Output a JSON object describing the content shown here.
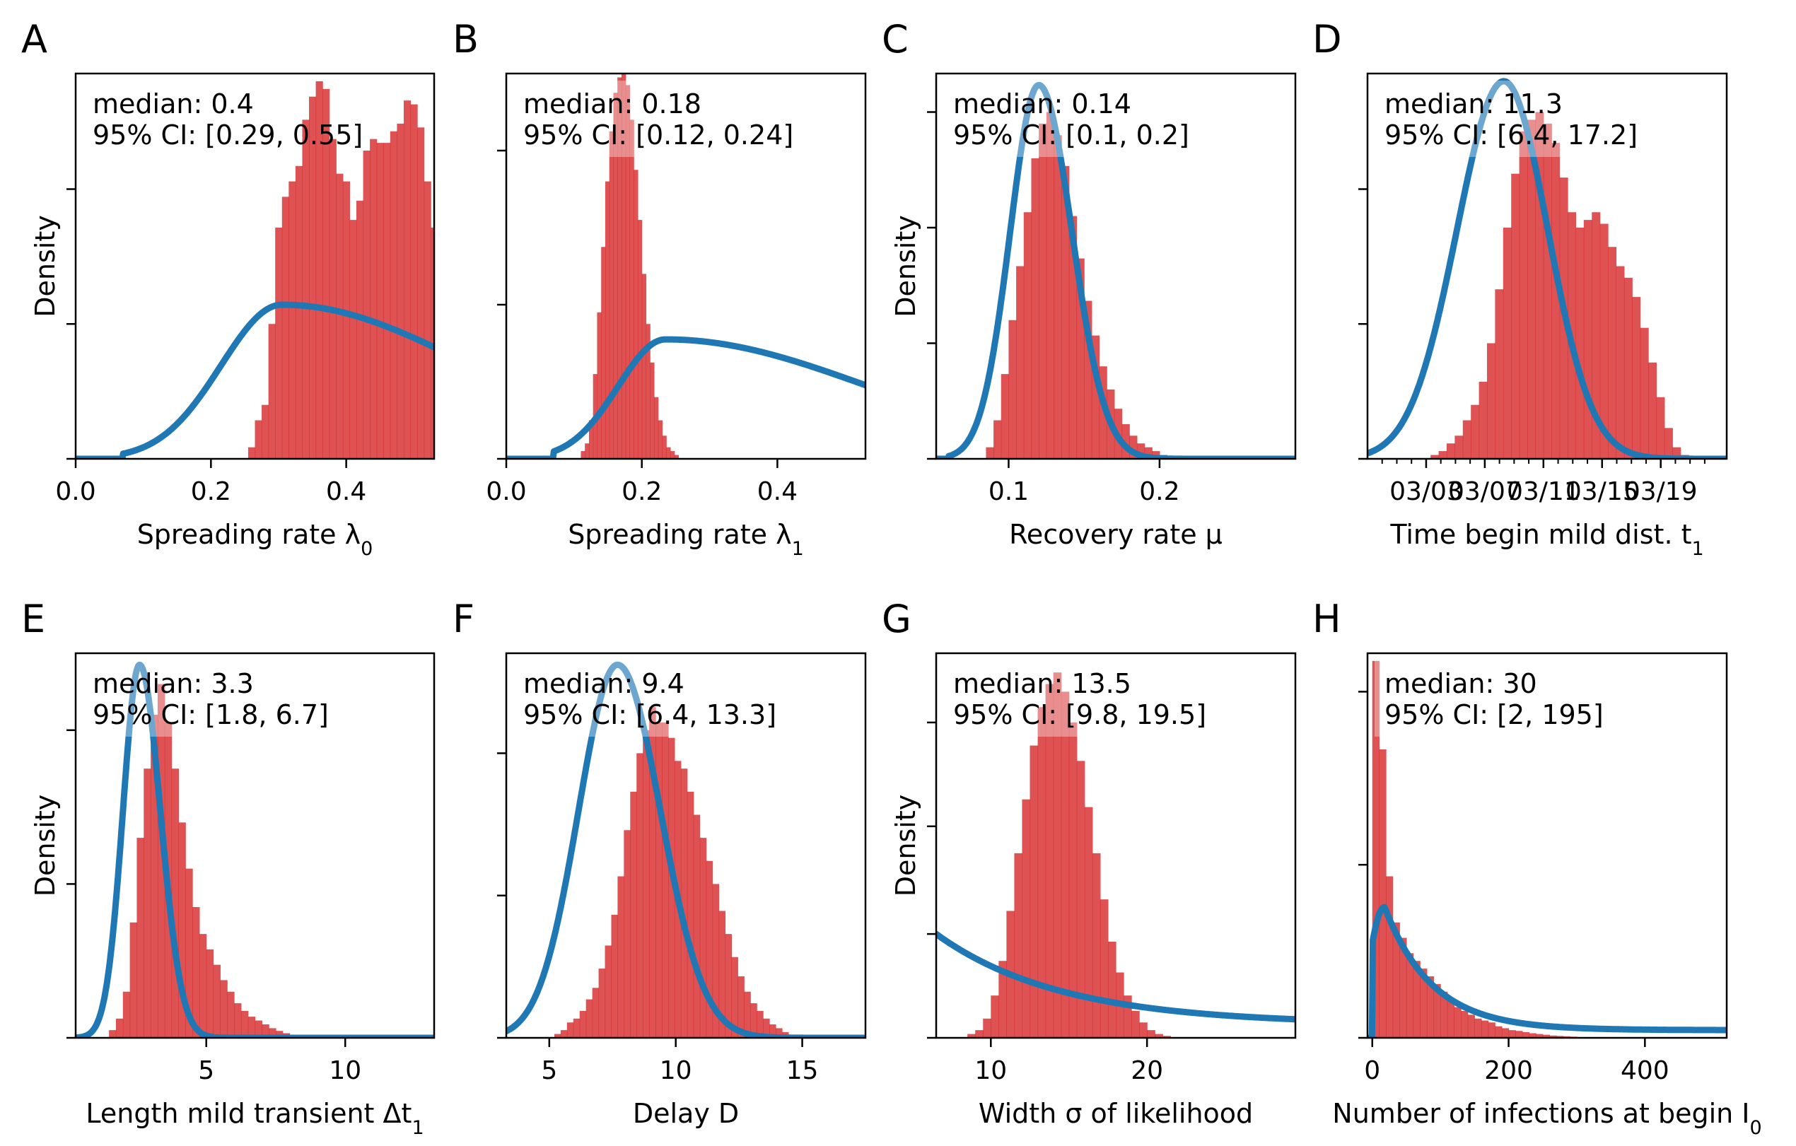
{
  "chart_data": [
    {
      "panel": "A",
      "type": "bar",
      "overlay": "line",
      "xlabel": "Spreading rate λ",
      "xlabel_sub": "0",
      "ylabel": "Density",
      "xlim": [
        0,
        0.53
      ],
      "ticks": [
        0.0,
        0.2,
        0.4
      ],
      "tick_labels": [
        "0.0",
        "0.2",
        "0.4"
      ],
      "y_ticks": [
        0.35,
        0.7
      ],
      "annotation": [
        "median: 0.4",
        "95% CI: [0.29, 0.55]"
      ],
      "hist": {
        "start": 0.255,
        "width": 0.01,
        "values": [
          0.03,
          0.1,
          0.14,
          0.35,
          0.6,
          0.68,
          0.72,
          0.76,
          0.88,
          0.94,
          0.98,
          0.96,
          0.83,
          0.74,
          0.72,
          0.62,
          0.67,
          0.8,
          0.83,
          0.82,
          0.82,
          0.85,
          0.87,
          0.93,
          0.92,
          0.86,
          0.72,
          0.6,
          0.28
        ]
      },
      "prior": {
        "peak": 0.305,
        "s_left": 0.09,
        "s_right": 0.28,
        "height": 0.4,
        "start": 0.07
      }
    },
    {
      "panel": "B",
      "type": "bar",
      "overlay": "line",
      "xlabel": "Spreading rate λ",
      "xlabel_sub": "1",
      "ylabel": "",
      "xlim": [
        0,
        0.53
      ],
      "ticks": [
        0.0,
        0.2,
        0.4
      ],
      "tick_labels": [
        "0.0",
        "0.2",
        "0.4"
      ],
      "y_ticks": [
        0.4,
        0.8
      ],
      "annotation": [
        "median: 0.18",
        "95% CI: [0.12, 0.24]"
      ],
      "hist": {
        "start": 0.11,
        "width": 0.006,
        "values": [
          0.02,
          0.04,
          0.1,
          0.22,
          0.38,
          0.55,
          0.72,
          0.85,
          0.95,
          0.99,
          1.0,
          0.97,
          0.88,
          0.75,
          0.62,
          0.48,
          0.35,
          0.25,
          0.16,
          0.1,
          0.06,
          0.03,
          0.02,
          0.01
        ]
      },
      "prior": {
        "peak": 0.235,
        "s_left": 0.07,
        "s_right": 0.3,
        "height": 0.31,
        "start": 0.07
      }
    },
    {
      "panel": "C",
      "type": "bar",
      "overlay": "line",
      "xlabel": "Recovery rate μ",
      "xlabel_sub": "",
      "ylabel": "Density",
      "xlim": [
        0.052,
        0.29
      ],
      "ticks": [
        0.1,
        0.2
      ],
      "tick_labels": [
        "0.1",
        "0.2"
      ],
      "y_ticks": [
        0.3,
        0.6,
        0.9
      ],
      "annotation": [
        "median: 0.14",
        "95% CI: [0.1, 0.2]"
      ],
      "hist": {
        "start": 0.085,
        "width": 0.005,
        "values": [
          0.03,
          0.1,
          0.22,
          0.36,
          0.5,
          0.64,
          0.78,
          0.87,
          0.9,
          0.84,
          0.76,
          0.63,
          0.52,
          0.41,
          0.32,
          0.24,
          0.18,
          0.13,
          0.09,
          0.06,
          0.04,
          0.03,
          0.02,
          0.01,
          0.005
        ]
      },
      "prior": {
        "peak": 0.12,
        "s_left": 0.019,
        "s_right": 0.022,
        "height": 0.97,
        "start": 0.06
      }
    },
    {
      "panel": "D",
      "type": "bar",
      "overlay": "line",
      "xlabel": "Time begin mild dist. t",
      "xlabel_sub": "1",
      "ylabel": "",
      "xlim": [
        0,
        24.5
      ],
      "ticks": [
        4,
        8,
        12,
        16,
        20
      ],
      "tick_labels": [
        "03/03",
        "03/07",
        "03/11",
        "03/15",
        "03/19"
      ],
      "y_ticks": [
        0.35,
        0.7
      ],
      "annotation": [
        "median: 11.3",
        "95% CI: [6.4, 17.2]"
      ],
      "hist": {
        "start": 4.3,
        "width": 0.55,
        "values": [
          0.01,
          0.02,
          0.04,
          0.06,
          0.1,
          0.14,
          0.2,
          0.3,
          0.44,
          0.6,
          0.74,
          0.85,
          0.88,
          0.9,
          0.87,
          0.82,
          0.73,
          0.64,
          0.6,
          0.62,
          0.64,
          0.61,
          0.55,
          0.5,
          0.47,
          0.42,
          0.34,
          0.25,
          0.16,
          0.08,
          0.03,
          0.01
        ]
      },
      "prior": {
        "peak": 9.3,
        "s_left": 3.2,
        "s_right": 3.0,
        "height": 0.98,
        "start": 0
      }
    },
    {
      "panel": "E",
      "type": "bar",
      "overlay": "line",
      "xlabel": "Length mild transient Δt",
      "xlabel_sub": "1",
      "ylabel": "Density",
      "xlim": [
        0.3,
        13.2
      ],
      "ticks": [
        5,
        10
      ],
      "tick_labels": [
        "5",
        "10"
      ],
      "y_ticks": [
        0.4,
        0.8
      ],
      "annotation": [
        "median: 3.3",
        "95% CI: [1.8, 6.7]"
      ],
      "hist": {
        "start": 1.5,
        "width": 0.25,
        "values": [
          0.02,
          0.05,
          0.12,
          0.3,
          0.52,
          0.7,
          0.84,
          0.92,
          0.82,
          0.7,
          0.56,
          0.44,
          0.34,
          0.27,
          0.23,
          0.19,
          0.15,
          0.12,
          0.09,
          0.07,
          0.055,
          0.045,
          0.035,
          0.025,
          0.018,
          0.012,
          0.008,
          0.005
        ]
      },
      "prior": {
        "peak": 2.6,
        "s_left": 0.6,
        "s_right": 0.75,
        "height": 0.97,
        "start": 0.3
      }
    },
    {
      "panel": "F",
      "type": "bar",
      "overlay": "line",
      "xlabel": "Delay D",
      "xlabel_sub": "",
      "ylabel": "",
      "xlim": [
        3.3,
        17.5
      ],
      "ticks": [
        5,
        10,
        15
      ],
      "tick_labels": [
        "5",
        "10",
        "15"
      ],
      "y_ticks": [
        0.37,
        0.74
      ],
      "annotation": [
        "median: 9.4",
        "95% CI: [6.4, 13.3]"
      ],
      "hist": {
        "start": 5.2,
        "width": 0.25,
        "values": [
          0.01,
          0.02,
          0.04,
          0.05,
          0.07,
          0.1,
          0.13,
          0.18,
          0.24,
          0.32,
          0.42,
          0.54,
          0.64,
          0.74,
          0.8,
          0.86,
          0.82,
          0.82,
          0.78,
          0.72,
          0.7,
          0.64,
          0.58,
          0.52,
          0.46,
          0.4,
          0.33,
          0.27,
          0.21,
          0.16,
          0.12,
          0.09,
          0.07,
          0.05,
          0.035,
          0.025,
          0.015,
          0.008
        ]
      },
      "prior": {
        "peak": 7.7,
        "s_left": 1.55,
        "s_right": 1.7,
        "height": 0.97,
        "start": 3.3
      }
    },
    {
      "panel": "G",
      "type": "bar",
      "overlay": "line",
      "xlabel": "Width σ of likelihood",
      "xlabel_sub": "",
      "ylabel": "Density",
      "xlim": [
        6.5,
        29.5
      ],
      "ticks": [
        10,
        20
      ],
      "tick_labels": [
        "10",
        "20"
      ],
      "y_ticks": [
        0.27,
        0.55,
        0.82
      ],
      "annotation": [
        "median: 13.5",
        "95% CI: [9.8, 19.5]"
      ],
      "hist": {
        "start": 8.5,
        "width": 0.5,
        "values": [
          0.01,
          0.02,
          0.05,
          0.11,
          0.2,
          0.33,
          0.48,
          0.62,
          0.76,
          0.86,
          0.92,
          0.95,
          0.9,
          0.82,
          0.72,
          0.6,
          0.48,
          0.36,
          0.25,
          0.17,
          0.11,
          0.07,
          0.04,
          0.02,
          0.01,
          0.005
        ]
      },
      "prior": {
        "curve": "decay",
        "y0": 0.27,
        "tail": 0.035,
        "scale": 8.0,
        "x0": 6.5
      }
    },
    {
      "panel": "H",
      "type": "bar",
      "overlay": "line",
      "xlabel": "Number of infections at begin I",
      "xlabel_sub": "0",
      "ylabel": "",
      "xlim": [
        -7,
        520
      ],
      "ticks": [
        0,
        200,
        400
      ],
      "tick_labels": [
        "0",
        "200",
        "400"
      ],
      "y_ticks": [
        0.45,
        0.9
      ],
      "annotation": [
        "median: 30",
        "95% CI: [2, 195]"
      ],
      "hist": {
        "start": 0,
        "width": 10,
        "values": [
          0.98,
          0.75,
          0.42,
          0.3,
          0.26,
          0.22,
          0.2,
          0.18,
          0.16,
          0.14,
          0.12,
          0.1,
          0.08,
          0.07,
          0.06,
          0.05,
          0.045,
          0.04,
          0.03,
          0.025,
          0.02,
          0.018,
          0.015,
          0.012,
          0.01,
          0.008,
          0.006,
          0.005,
          0.004,
          0.003
        ]
      },
      "prior": {
        "curve": "peaked_decay",
        "peak": 18,
        "height": 0.34,
        "rise": 6,
        "scale": 70,
        "tail": 0.02
      }
    }
  ],
  "panel_letters": [
    "A",
    "B",
    "C",
    "D",
    "E",
    "F",
    "G",
    "H"
  ],
  "colors": {
    "hist": "#d62728",
    "prior": "#1f77b4",
    "hist_alpha": 0.8,
    "annotation_bg": "#ffffff"
  }
}
